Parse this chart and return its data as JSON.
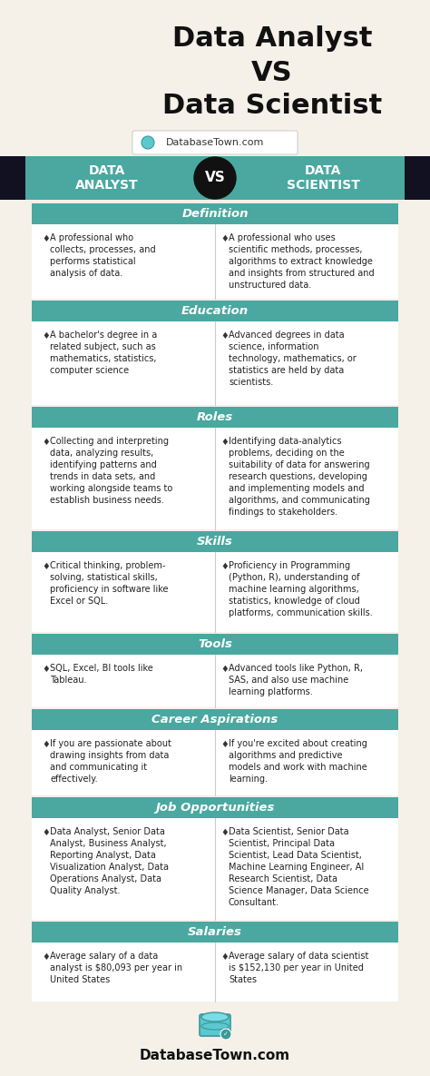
{
  "title_line1": "Data Analyst",
  "title_line2": "VS",
  "title_line3": "Data Scientist",
  "header_left": "DATA\nANALYST",
  "header_vs": "VS",
  "header_right": "DATA\nSCIENTIST",
  "bg_color": "#f5f0e8",
  "teal_color": "#4aA8A0",
  "dark_color": "#111122",
  "sections": [
    {
      "title": "Definition",
      "left": "A professional who\ncollects, processes, and\nperforms statistical\nanalysis of data.",
      "right": "A professional who uses\nscientific methods, processes,\nalgorithms to extract knowledge\nand insights from structured and\nunstructured data."
    },
    {
      "title": "Education",
      "left": "A bachelor's degree in a\nrelated subject, such as\nmathematics, statistics,\ncomputer science",
      "right": "Advanced degrees in data\nscience, information\ntechnology, mathematics, or\nstatistics are held by data\nscientists."
    },
    {
      "title": "Roles",
      "left": "Collecting and interpreting\ndata, analyzing results,\nidentifying patterns and\ntrends in data sets, and\nworking alongside teams to\nestablish business needs.",
      "right": "Identifying data-analytics\nproblems, deciding on the\nsuitability of data for answering\nresearch questions, developing\nand implementing models and\nalgorithms, and communicating\nfindings to stakeholders."
    },
    {
      "title": "Skills",
      "left": "Critical thinking, problem-\nsolving, statistical skills,\nproficiency in software like\nExcel or SQL.",
      "right": "Proficiency in Programming\n(Python, R), understanding of\nmachine learning algorithms,\nstatistics, knowledge of cloud\nplatforms, communication skills."
    },
    {
      "title": "Tools",
      "left": "SQL, Excel, BI tools like\nTableau.",
      "right": "Advanced tools like Python, R,\nSAS, and also use machine\nlearning platforms."
    },
    {
      "title": "Career Aspirations",
      "left": "If you are passionate about\ndrawing insights from data\nand communicating it\neffectively.",
      "right": "If you're excited about creating\nalgorithms and predictive\nmodels and work with machine\nlearning."
    },
    {
      "title": "Job Opportunities",
      "left": "Data Analyst, Senior Data\nAnalyst, Business Analyst,\nReporting Analyst, Data\nVisualization Analyst, Data\nOperations Analyst, Data\nQuality Analyst.",
      "right": "Data Scientist, Senior Data\nScientist, Principal Data\nScientist, Lead Data Scientist,\nMachine Learning Engineer, AI\nResearch Scientist, Data\nScience Manager, Data Science\nConsultant."
    },
    {
      "title": "Salaries",
      "left": "Average salary of a data\nanalyst is $80,093 per year in\nUnited States",
      "right": "Average salary of data scientist\nis $152,130 per year in United\nStates"
    }
  ],
  "section_heights": [
    82,
    92,
    112,
    88,
    58,
    72,
    112,
    65
  ],
  "footer": "DatabaseTown.com"
}
